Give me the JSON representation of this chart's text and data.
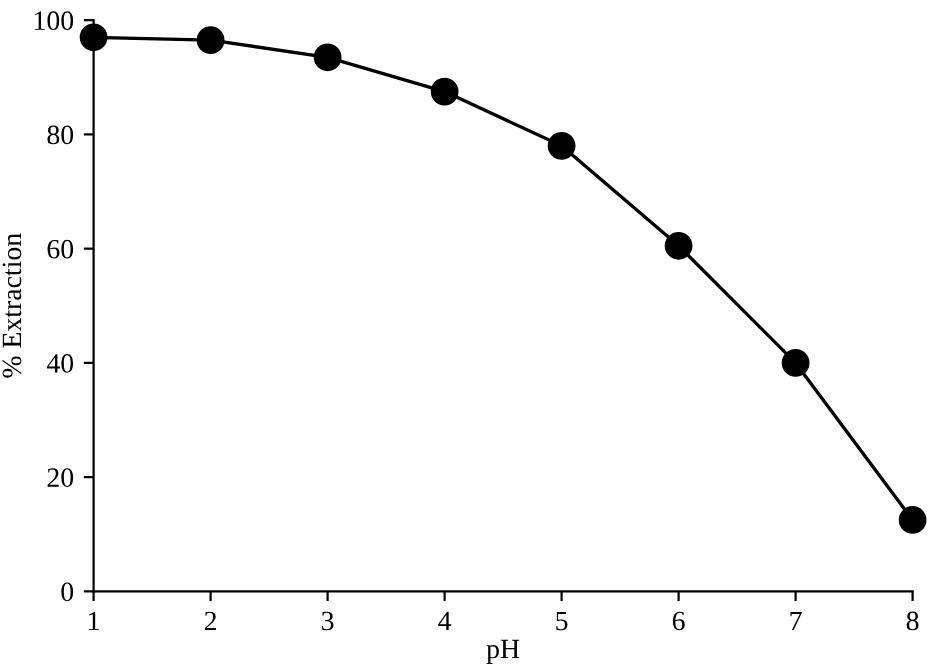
{
  "chart_data": {
    "type": "line",
    "xlabel": "pH",
    "ylabel": "% Extraction",
    "x": [
      1,
      2,
      3,
      4,
      5,
      6,
      7,
      8
    ],
    "series": [
      {
        "color": "#000000",
        "values": [
          97,
          96.5,
          93.5,
          87.5,
          78,
          60.5,
          40,
          12.5
        ]
      }
    ],
    "xlim": [
      1,
      8
    ],
    "xticks": [
      1,
      2,
      3,
      4,
      5,
      6,
      7,
      8
    ],
    "ylim": [
      0,
      100
    ],
    "yticks": [
      0,
      20,
      40,
      60,
      80,
      100
    ],
    "marker": "circle",
    "line_style": "solid",
    "grid": false,
    "legend": false
  }
}
